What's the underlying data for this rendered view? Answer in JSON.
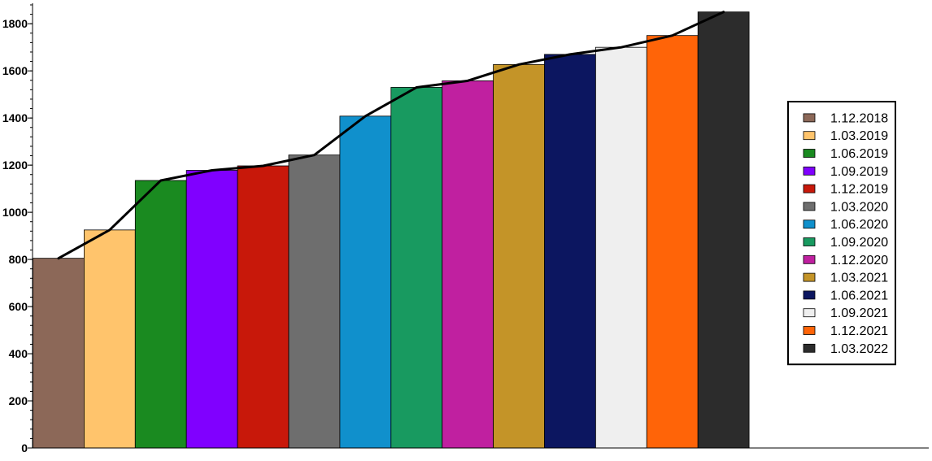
{
  "chart_data": {
    "type": "bar",
    "title": "",
    "xlabel": "",
    "ylabel": "",
    "ylim": [
      0,
      1880
    ],
    "y_ticks": [
      0,
      200,
      400,
      600,
      800,
      1000,
      1200,
      1400,
      1600,
      1800
    ],
    "y_tick_labels": [
      "0",
      "200",
      "400",
      "600",
      "800",
      "1000",
      "1200",
      "1400",
      "1600",
      "1800"
    ],
    "grid": false,
    "legend_position": "right",
    "categories": [
      "1.12.2018",
      "1.03.2019",
      "1.06.2019",
      "1.09.2019",
      "1.12.2019",
      "1.03.2020",
      "1.06.2020",
      "1.09.2020",
      "1.12.2020",
      "1.03.2021",
      "1.06.2021",
      "1.09.2021",
      "1.12.2021",
      "1.03.2022"
    ],
    "values": [
      805,
      925,
      1135,
      1178,
      1197,
      1243,
      1408,
      1530,
      1558,
      1627,
      1670,
      1700,
      1750,
      1850
    ],
    "colors": [
      "#8c6858",
      "#ffc46c",
      "#1a8a20",
      "#8000ff",
      "#c8180a",
      "#6e6e6e",
      "#1090cc",
      "#189a60",
      "#c020a0",
      "#c49428",
      "#0c1660",
      "#efefef",
      "#ff6408",
      "#2c2c2c"
    ],
    "line_series": {
      "values": [
        805,
        925,
        1135,
        1178,
        1197,
        1243,
        1408,
        1530,
        1558,
        1627,
        1670,
        1700,
        1750,
        1850
      ],
      "color": "#000000"
    }
  }
}
